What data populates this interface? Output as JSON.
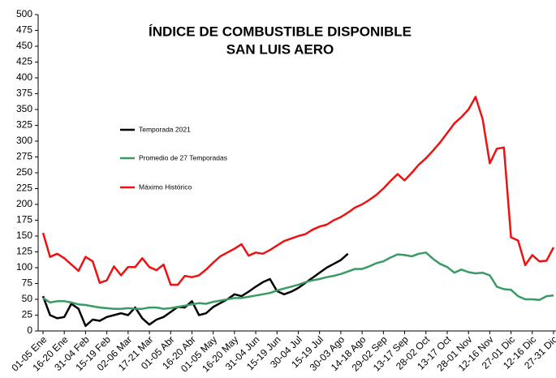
{
  "chart_data": {
    "type": "line",
    "title": "ÍNDICE DE COMBUSTIBLE DISPONIBLE",
    "subtitle": "SAN LUIS AERO",
    "categories": [
      "01-05 Ene",
      null,
      null,
      "16-20 Ene",
      null,
      null,
      "31-04 Feb",
      null,
      null,
      "15-19 Feb",
      null,
      null,
      "02-06 Mar",
      null,
      null,
      "17-21 Mar",
      null,
      null,
      "01-05 Abr",
      null,
      null,
      "16-20 Abr",
      null,
      null,
      "01-05 May",
      null,
      null,
      "16-20 May",
      null,
      null,
      "31-04 Jun",
      null,
      null,
      "15-19 Jun",
      null,
      null,
      "30-04 Jul",
      null,
      null,
      "15-19 Jul",
      null,
      null,
      "30-03 Ago",
      null,
      null,
      "14-18 Ago",
      null,
      null,
      "29-02 Sep",
      null,
      null,
      "13-17 Sep",
      null,
      null,
      "28-02 Oct",
      null,
      null,
      "13-17 Oct",
      null,
      null,
      "28-01 Nov",
      null,
      null,
      "12-16 Nov",
      null,
      null,
      "27-01 Dic",
      null,
      null,
      "12-16 Dic",
      null,
      null,
      "27-31 Dic"
    ],
    "series": [
      {
        "name": "Temporada 2021",
        "color": "#000000",
        "values": [
          55,
          25,
          20,
          22,
          43,
          35,
          8,
          18,
          16,
          22,
          25,
          28,
          25,
          37,
          20,
          10,
          18,
          22,
          30,
          38,
          37,
          47,
          25,
          28,
          38,
          44,
          50,
          58,
          55,
          62,
          70,
          77,
          82,
          63,
          58,
          62,
          68,
          76,
          84,
          92,
          100,
          106,
          112,
          122,
          null,
          null,
          null,
          null,
          null,
          null,
          null,
          null,
          null,
          null,
          null,
          null,
          null,
          null,
          null,
          null,
          null,
          null,
          null,
          null,
          null,
          null,
          null,
          null,
          null,
          null,
          null,
          null,
          null
        ]
      },
      {
        "name": "Promedio de 27 Temporadas",
        "color": "#3a9a64",
        "values": [
          52,
          45,
          47,
          47,
          45,
          42,
          41,
          39,
          37,
          36,
          35,
          35,
          36,
          35,
          35,
          37,
          37,
          35,
          36,
          38,
          40,
          42,
          44,
          43,
          46,
          48,
          50,
          52,
          52,
          54,
          56,
          58,
          60,
          64,
          67,
          70,
          73,
          77,
          80,
          82,
          85,
          87,
          90,
          94,
          98,
          98,
          102,
          107,
          110,
          116,
          121,
          120,
          118,
          122,
          124,
          114,
          106,
          101,
          92,
          97,
          93,
          91,
          92,
          88,
          70,
          66,
          65,
          55,
          50,
          50,
          49,
          55,
          56
        ]
      },
      {
        "name": "Máximo Histórico",
        "color": "#ee1111",
        "values": [
          155,
          117,
          122,
          115,
          105,
          95,
          117,
          110,
          76,
          80,
          102,
          88,
          101,
          101,
          115,
          101,
          96,
          105,
          73,
          73,
          87,
          85,
          88,
          97,
          108,
          118,
          124,
          130,
          137,
          119,
          124,
          122,
          128,
          135,
          142,
          146,
          150,
          153,
          160,
          165,
          168,
          175,
          180,
          187,
          195,
          200,
          207,
          215,
          225,
          237,
          248,
          238,
          250,
          263,
          273,
          285,
          298,
          313,
          328,
          338,
          350,
          370,
          335,
          265,
          288,
          290,
          148,
          143,
          104,
          120,
          110,
          111,
          132
        ]
      }
    ],
    "ylim": [
      0,
      500
    ],
    "yticks": [
      0,
      25,
      50,
      75,
      100,
      125,
      150,
      175,
      200,
      225,
      250,
      275,
      300,
      325,
      350,
      375,
      400,
      425,
      450,
      475,
      500
    ],
    "grid": false
  }
}
